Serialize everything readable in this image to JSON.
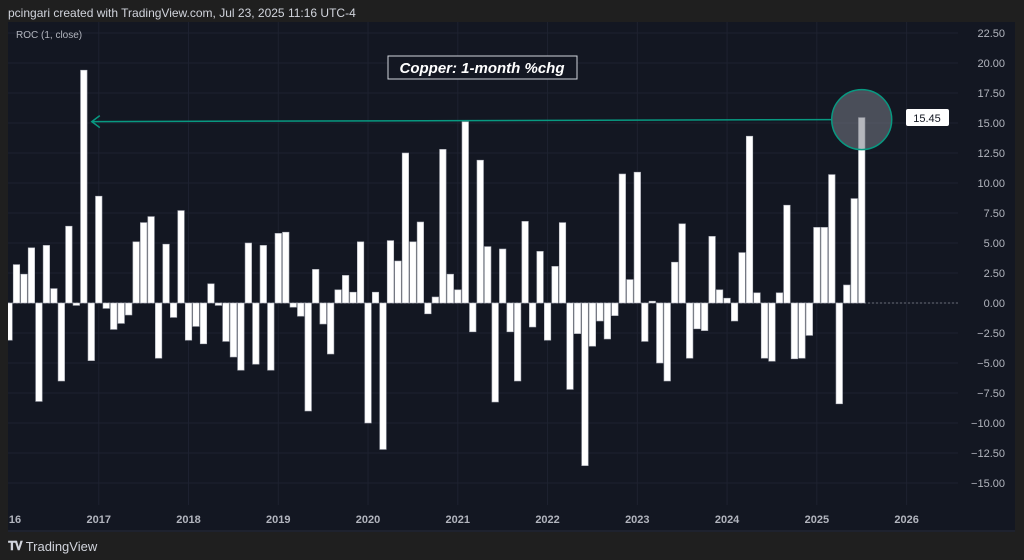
{
  "header": {
    "attribution": "pcingari created with TradingView.com, Jul 23, 2025 11:16 UTC-4"
  },
  "footer": {
    "brand": "TradingView",
    "logo_text": "TV"
  },
  "colors": {
    "background": "#131722",
    "bar_fill": "#ffffff",
    "bar_border": "#b2b5be",
    "annotation": "#089981",
    "grid": "#1e2230",
    "axis_text": "#b2b5be"
  },
  "chart_data": {
    "type": "bar",
    "indicator_label": "ROC (1, close)",
    "title": "Copper: 1-month %chg",
    "frequency": "monthly",
    "x_start": "2016-01",
    "x_end": "2025-07",
    "x_tick_labels": [
      "16",
      "2017",
      "2018",
      "2019",
      "2020",
      "2021",
      "2022",
      "2023",
      "2024",
      "2025",
      "2026"
    ],
    "y_tick_labels": [
      "22.50",
      "20.00",
      "17.50",
      "15.00",
      "12.50",
      "10.00",
      "7.50",
      "5.00",
      "2.50",
      "0.00",
      "−2.50",
      "−5.00",
      "−7.50",
      "−10.00",
      "−12.50",
      "−15.00"
    ],
    "ylim": [
      -15,
      22.5
    ],
    "last_value_label": "15.45",
    "grid": true,
    "values": [
      -3.1,
      3.2,
      2.4,
      4.6,
      -8.2,
      4.8,
      1.2,
      -6.5,
      6.4,
      -0.2,
      19.4,
      -4.8,
      8.9,
      -0.45,
      -2.2,
      -1.7,
      -1.0,
      5.1,
      6.7,
      7.2,
      -4.6,
      4.9,
      -1.2,
      7.7,
      -3.1,
      -1.95,
      -3.4,
      1.6,
      -0.2,
      -3.2,
      -4.5,
      -5.6,
      5.0,
      -5.1,
      4.8,
      -5.6,
      5.8,
      5.9,
      -0.35,
      -1.1,
      -9.0,
      2.8,
      -1.75,
      -4.25,
      1.1,
      2.3,
      0.9,
      5.1,
      -10.0,
      0.9,
      -12.2,
      5.2,
      3.5,
      12.5,
      5.1,
      6.75,
      -0.9,
      0.5,
      12.8,
      2.4,
      1.1,
      15.1,
      -2.4,
      11.9,
      4.7,
      -8.25,
      4.5,
      -2.4,
      -6.5,
      6.8,
      -2.0,
      4.3,
      -3.1,
      3.05,
      6.7,
      -7.2,
      -2.55,
      -13.55,
      -3.6,
      -1.5,
      -3.0,
      -1.05,
      10.75,
      1.95,
      10.9,
      -3.2,
      0.15,
      -5.0,
      -6.5,
      3.4,
      6.6,
      -4.6,
      -2.15,
      -2.3,
      5.55,
      1.1,
      0.4,
      -1.5,
      4.2,
      13.9,
      0.85,
      -4.6,
      -4.85,
      0.85,
      8.15,
      -4.65,
      -4.6,
      -2.7,
      6.3,
      6.3,
      10.7,
      -8.4,
      1.5,
      8.7,
      15.45
    ],
    "annotations": [
      {
        "type": "arrow",
        "from": "2025-07",
        "to": "2016-11",
        "level": 15.45
      },
      {
        "type": "circle",
        "at": "2025-07",
        "level": 15.45
      }
    ]
  }
}
